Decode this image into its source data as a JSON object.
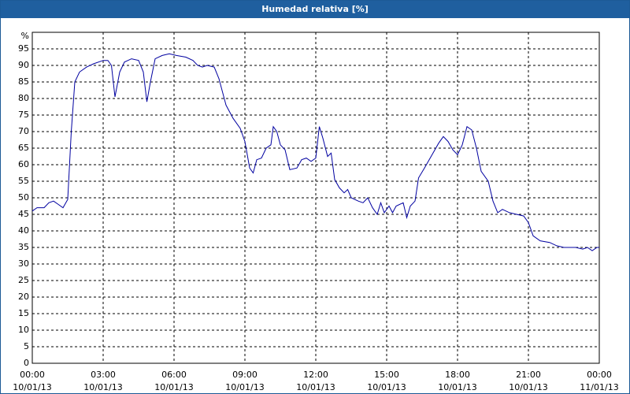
{
  "window_title": "Humedad relativa [%]",
  "chart_data": {
    "type": "line",
    "ylabel": "%",
    "xlim": [
      0,
      24
    ],
    "ylim": [
      0,
      100
    ],
    "xticks": [
      {
        "value": 0,
        "label": "00:00",
        "date": "10/01/13"
      },
      {
        "value": 3,
        "label": "03:00",
        "date": "10/01/13"
      },
      {
        "value": 6,
        "label": "06:00",
        "date": "10/01/13"
      },
      {
        "value": 9,
        "label": "09:00",
        "date": "10/01/13"
      },
      {
        "value": 12,
        "label": "12:00",
        "date": "10/01/13"
      },
      {
        "value": 15,
        "label": "15:00",
        "date": "10/01/13"
      },
      {
        "value": 18,
        "label": "18:00",
        "date": "10/01/13"
      },
      {
        "value": 21,
        "label": "21:00",
        "date": "10/01/13"
      },
      {
        "value": 24,
        "label": "00:00",
        "date": "11/01/13"
      }
    ],
    "yticks": [
      0,
      5,
      10,
      15,
      20,
      25,
      30,
      35,
      40,
      45,
      50,
      55,
      60,
      65,
      70,
      75,
      80,
      85,
      90,
      95
    ],
    "grid": true,
    "series": [
      {
        "color": "#0000a0",
        "x": [
          0,
          0.2,
          0.5,
          0.7,
          0.9,
          1.1,
          1.3,
          1.5,
          1.65,
          1.8,
          2.0,
          2.3,
          2.6,
          3.0,
          3.2,
          3.35,
          3.5,
          3.7,
          3.9,
          4.2,
          4.5,
          4.7,
          4.85,
          5.0,
          5.2,
          5.5,
          5.8,
          6.1,
          6.5,
          6.8,
          7.0,
          7.2,
          7.4,
          7.7,
          7.9,
          8.2,
          8.5,
          8.8,
          9.0,
          9.2,
          9.35,
          9.5,
          9.7,
          9.9,
          10.1,
          10.2,
          10.35,
          10.5,
          10.7,
          10.9,
          11.2,
          11.4,
          11.6,
          11.8,
          12.0,
          12.15,
          12.3,
          12.5,
          12.65,
          12.8,
          13.0,
          13.2,
          13.35,
          13.5,
          13.8,
          14.0,
          14.2,
          14.4,
          14.6,
          14.75,
          14.9,
          15.1,
          15.25,
          15.4,
          15.7,
          15.85,
          16.0,
          16.2,
          16.35,
          16.6,
          16.8,
          17.0,
          17.2,
          17.4,
          17.6,
          17.8,
          18.0,
          18.2,
          18.4,
          18.6,
          18.8,
          19.0,
          19.3,
          19.5,
          19.7,
          19.9,
          20.2,
          20.5,
          20.8,
          21.0,
          21.2,
          21.5,
          21.9,
          22.2,
          22.5,
          23.0,
          23.3,
          23.5,
          23.7,
          23.9,
          24.0
        ],
        "values": [
          46,
          47,
          47,
          48.5,
          49,
          48,
          47,
          49.5,
          70,
          85,
          88,
          89.5,
          90.5,
          91.5,
          91.5,
          90,
          80.5,
          88,
          91,
          92,
          91.5,
          88,
          79,
          85,
          92,
          93,
          93.5,
          93,
          92.5,
          91.5,
          90,
          89.5,
          90,
          89.5,
          86,
          78,
          74,
          71,
          67,
          59,
          57.5,
          61.5,
          62,
          65,
          66,
          71.5,
          70,
          66,
          64.5,
          58.5,
          59,
          61.5,
          62,
          61,
          62,
          71.5,
          68,
          62.5,
          63.5,
          55.5,
          53,
          51.5,
          52.5,
          50,
          49,
          48.5,
          50,
          47,
          45,
          48.5,
          45.5,
          47.5,
          45.5,
          47.5,
          48.5,
          44,
          47.5,
          49,
          56,
          59,
          61.5,
          64,
          66.5,
          68.5,
          67,
          64.5,
          63,
          66,
          71.5,
          70.5,
          65,
          58,
          55,
          49,
          45.5,
          46.5,
          45.5,
          45,
          44.5,
          42.5,
          38.5,
          37,
          36.5,
          35.5,
          35,
          35,
          34.5,
          35,
          34,
          35,
          35
        ]
      }
    ]
  }
}
